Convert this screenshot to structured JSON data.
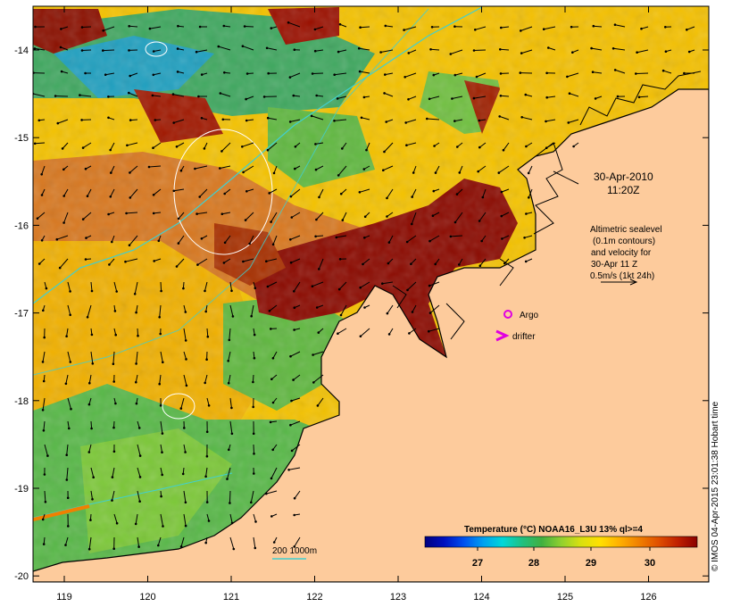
{
  "map": {
    "timestamp_date": "30-Apr-2010",
    "timestamp_time": "11:20Z",
    "info_lines": [
      "Altimetric sealevel",
      "(0.1m contours)",
      "and velocity for",
      "30-Apr 11 Z",
      "0.5m/s (1kt 24h)"
    ],
    "argo_label": "Argo",
    "drifter_label": "drifter",
    "bathymetry_label": "200  1000m",
    "colorbar": {
      "title": "Temperature (°C) NOAA16_L3U 13% ql>=4",
      "ticks": [
        "27",
        "28",
        "29",
        "30"
      ],
      "colors": [
        "#000080",
        "#0010c0",
        "#0050f0",
        "#00a0f0",
        "#00d8d8",
        "#20c080",
        "#40b040",
        "#90d030",
        "#d8e010",
        "#ffe000",
        "#ffb000",
        "#f08000",
        "#e05000",
        "#c02000",
        "#8b0000"
      ]
    },
    "x_ticks": [
      "119",
      "120",
      "121",
      "122",
      "123",
      "124",
      "125",
      "126"
    ],
    "y_ticks": [
      "-14",
      "-15",
      "-16",
      "-17",
      "-18",
      "-19",
      "-20"
    ],
    "credit": "© IMOS 04-Apr-2015 23:01:38 Hobart time",
    "colors": {
      "land": "#fdcb9c",
      "warm": "#8b0000",
      "hot": "#e07000",
      "mid": "#f0c000",
      "cool": "#40b040",
      "cold": "#00a0e0",
      "bathymetry_200": "#40d0d0",
      "sealevel_contour": "#ffffff",
      "argo_marker": "#e000e0",
      "drifter_marker": "#e000e0"
    },
    "icons": [
      "argo-circle-icon",
      "drifter-chevron-icon",
      "velocity-scale-arrow-icon"
    ]
  }
}
